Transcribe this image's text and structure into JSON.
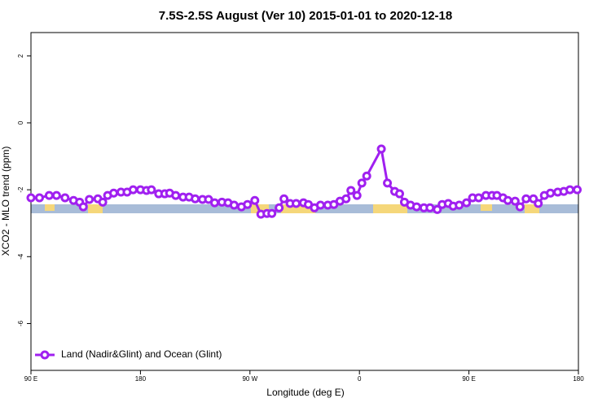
{
  "chart_data": {
    "type": "line",
    "title": "7.5S-2.5S August (Ver 10)   2015-01-01 to 2020-12-18",
    "x_label": "Longitude (deg E)",
    "y_label": "XCO2 - MLO trend (ppm)",
    "xlim": [
      90,
      540
    ],
    "xticks": [
      {
        "value": 90,
        "label": "90 E"
      },
      180,
      {
        "value": 270,
        "label": "90 W"
      },
      {
        "value": 360,
        "label": "0"
      },
      {
        "value": 450,
        "label": "90 E"
      },
      {
        "value": 540,
        "label": "180"
      }
    ],
    "ylim": [
      -7.4,
      2.7
    ],
    "yticks": [
      -6,
      -4,
      -2,
      0,
      2
    ],
    "legend": "bottomleft",
    "x": [
      90,
      97,
      105,
      111,
      118,
      125,
      130,
      133,
      138,
      145,
      149,
      153,
      158,
      164,
      169,
      174,
      180,
      185,
      189,
      195,
      200,
      204,
      209,
      215,
      220,
      225,
      231,
      236,
      241,
      247,
      252,
      257,
      263,
      268,
      274,
      279,
      284,
      288,
      294,
      298,
      303,
      308,
      314,
      318,
      323,
      328,
      334,
      339,
      344,
      349,
      353,
      358,
      362,
      366,
      378,
      383,
      389,
      393,
      397,
      402,
      407,
      413,
      418,
      424,
      428,
      433,
      437,
      442,
      448,
      453,
      458,
      464,
      469,
      473,
      478,
      482,
      488,
      492,
      497,
      503,
      507,
      512,
      517,
      523,
      528,
      533,
      539
    ],
    "series": [
      {
        "name": "Land (Nadir&Glint) and Ocean (Glint)",
        "color": "#a020f0",
        "values": [
          -2.24,
          -2.24,
          -2.17,
          -2.17,
          -2.24,
          -2.32,
          -2.37,
          -2.51,
          -2.29,
          -2.27,
          -2.37,
          -2.17,
          -2.1,
          -2.07,
          -2.07,
          -2.0,
          -2.0,
          -2.02,
          -2.0,
          -2.12,
          -2.12,
          -2.1,
          -2.17,
          -2.22,
          -2.22,
          -2.27,
          -2.29,
          -2.29,
          -2.39,
          -2.37,
          -2.39,
          -2.46,
          -2.51,
          -2.44,
          -2.32,
          -2.73,
          -2.71,
          -2.71,
          -2.54,
          -2.27,
          -2.41,
          -2.41,
          -2.39,
          -2.44,
          -2.54,
          -2.46,
          -2.46,
          -2.44,
          -2.34,
          -2.27,
          -2.02,
          -2.17,
          -1.8,
          -1.59,
          -0.78,
          -1.8,
          -2.05,
          -2.12,
          -2.37,
          -2.46,
          -2.51,
          -2.54,
          -2.54,
          -2.59,
          -2.44,
          -2.41,
          -2.49,
          -2.46,
          -2.39,
          -2.24,
          -2.24,
          -2.17,
          -2.17,
          -2.17,
          -2.24,
          -2.32,
          -2.34,
          -2.51,
          -2.27,
          -2.27,
          -2.41,
          -2.17,
          -2.1,
          -2.07,
          -2.05,
          -2.0,
          -2.0
        ]
      }
    ]
  }
}
